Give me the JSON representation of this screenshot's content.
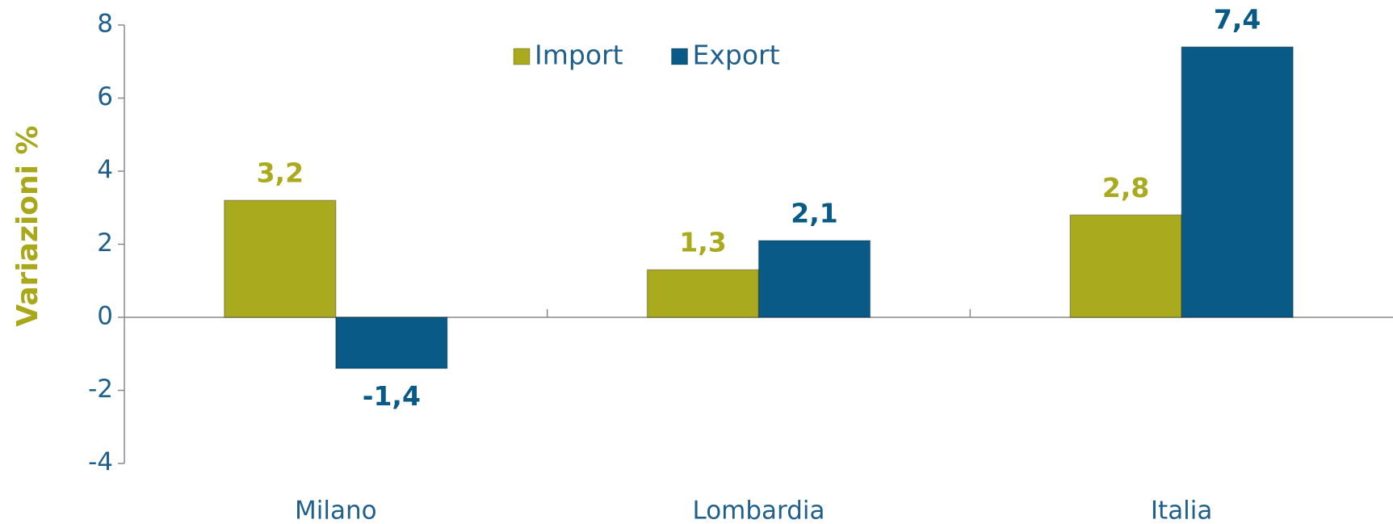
{
  "chart_data": {
    "type": "bar",
    "y_label": "Variazioni %",
    "categories": [
      "Milano",
      "Lombardia",
      "Italia"
    ],
    "series": [
      {
        "name": "Import",
        "color": "#aaaa1e",
        "values": [
          3.2,
          1.3,
          2.8
        ],
        "value_labels": [
          "3,2",
          "1,3",
          "2,8"
        ]
      },
      {
        "name": "Export",
        "color": "#0a5a87",
        "values": [
          -1.4,
          2.1,
          7.4
        ],
        "value_labels": [
          "-1,4",
          "2,1",
          "7,4"
        ]
      }
    ],
    "ylim": [
      -4,
      8
    ],
    "yticks": [
      -4,
      -2,
      0,
      2,
      4,
      6,
      8
    ],
    "legend": "top"
  }
}
